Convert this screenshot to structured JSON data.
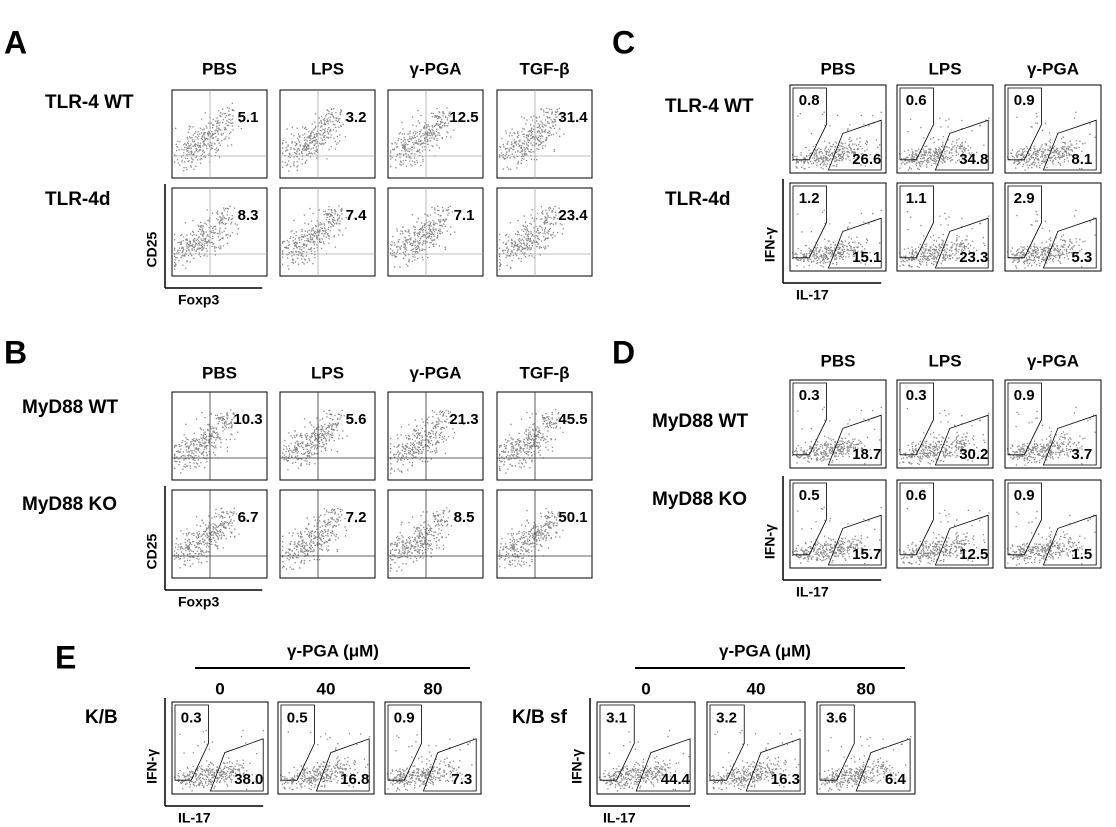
{
  "panels": [
    {
      "letter": "A",
      "columns": [
        "PBS",
        "LPS",
        "γ-PGA",
        "TGF-β"
      ],
      "rows": [
        {
          "label": "TLR-4 WT",
          "values": [
            "5.1",
            "3.2",
            "12.5",
            "31.4"
          ]
        },
        {
          "label": "TLR-4d",
          "values": [
            "8.3",
            "7.4",
            "7.1",
            "23.4"
          ]
        }
      ],
      "y_axis": "CD25",
      "x_axis": "Foxp3"
    },
    {
      "letter": "B",
      "columns": [
        "PBS",
        "LPS",
        "γ-PGA",
        "TGF-β"
      ],
      "rows": [
        {
          "label": "MyD88 WT",
          "values": [
            "10.3",
            "5.6",
            "21.3",
            "45.5"
          ]
        },
        {
          "label": "MyD88 KO",
          "values": [
            "6.7",
            "7.2",
            "8.5",
            "50.1"
          ]
        }
      ],
      "y_axis": "CD25",
      "x_axis": "Foxp3"
    },
    {
      "letter": "C",
      "columns": [
        "PBS",
        "LPS",
        "γ-PGA"
      ],
      "rows": [
        {
          "label": "TLR-4 WT",
          "upper": [
            "0.8",
            "0.6",
            "0.9"
          ],
          "lower": [
            "26.6",
            "34.8",
            "8.1"
          ]
        },
        {
          "label": "TLR-4d",
          "upper": [
            "1.2",
            "1.1",
            "2.9"
          ],
          "lower": [
            "15.1",
            "23.3",
            "5.3"
          ]
        }
      ],
      "y_axis": "IFN-γ",
      "x_axis": "IL-17"
    },
    {
      "letter": "D",
      "columns": [
        "PBS",
        "LPS",
        "γ-PGA"
      ],
      "rows": [
        {
          "label": "MyD88 WT",
          "upper": [
            "0.3",
            "0.3",
            "0.9"
          ],
          "lower": [
            "18.7",
            "30.2",
            "3.7"
          ]
        },
        {
          "label": "MyD88 KO",
          "upper": [
            "0.5",
            "0.6",
            "0.9"
          ],
          "lower": [
            "15.7",
            "12.5",
            "1.5"
          ]
        }
      ],
      "y_axis": "IFN-γ",
      "x_axis": "IL-17"
    }
  ],
  "panel_E": {
    "letter": "E",
    "groups": [
      {
        "header": "γ-PGA (μM)",
        "columns": [
          "0",
          "40",
          "80"
        ],
        "rows": [
          {
            "label": "K/B",
            "upper": [
              "0.3",
              "0.5",
              "0.9"
            ],
            "lower": [
              "38.0",
              "16.8",
              "7.3"
            ]
          }
        ],
        "y_axis": "IFN-γ",
        "x_axis": "IL-17"
      },
      {
        "header": "γ-PGA (μM)",
        "columns": [
          "0",
          "40",
          "80"
        ],
        "rows": [
          {
            "label": "K/B sf",
            "upper": [
              "3.1",
              "3.2",
              "3.6"
            ],
            "lower": [
              "44.4",
              "16.3",
              "6.4"
            ]
          }
        ],
        "y_axis": "IFN-γ",
        "x_axis": "IL-17"
      }
    ]
  }
}
